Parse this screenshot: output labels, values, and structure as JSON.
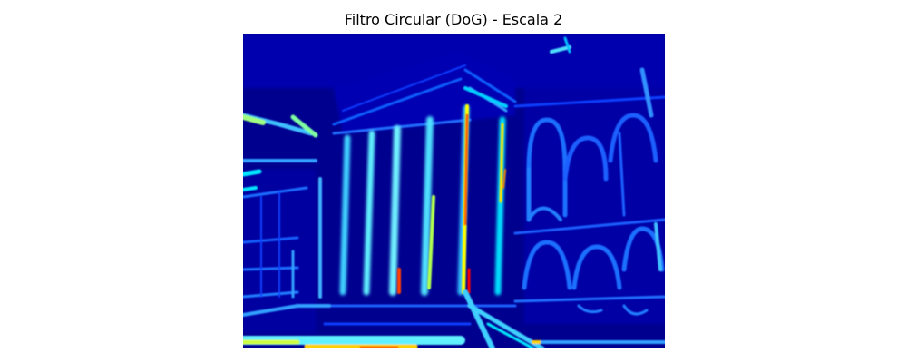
{
  "figure": {
    "title": "Filtro Circular (DoG) - Escala 2"
  },
  "chart_data": {
    "type": "heatmap",
    "title": "Filtro Circular (DoG) - Escala 2",
    "colormap": "jet",
    "axis": "off",
    "grid": false,
    "legend": "none",
    "depicted_subject": "building facade with columns and arched windows",
    "colors": {
      "background": "#00008f",
      "low": "#0000ff",
      "mid_low": "#0080ff",
      "mid": "#00e8ff",
      "mid_high": "#ffff00",
      "high": "#ff8000",
      "max": "#c00000"
    }
  }
}
